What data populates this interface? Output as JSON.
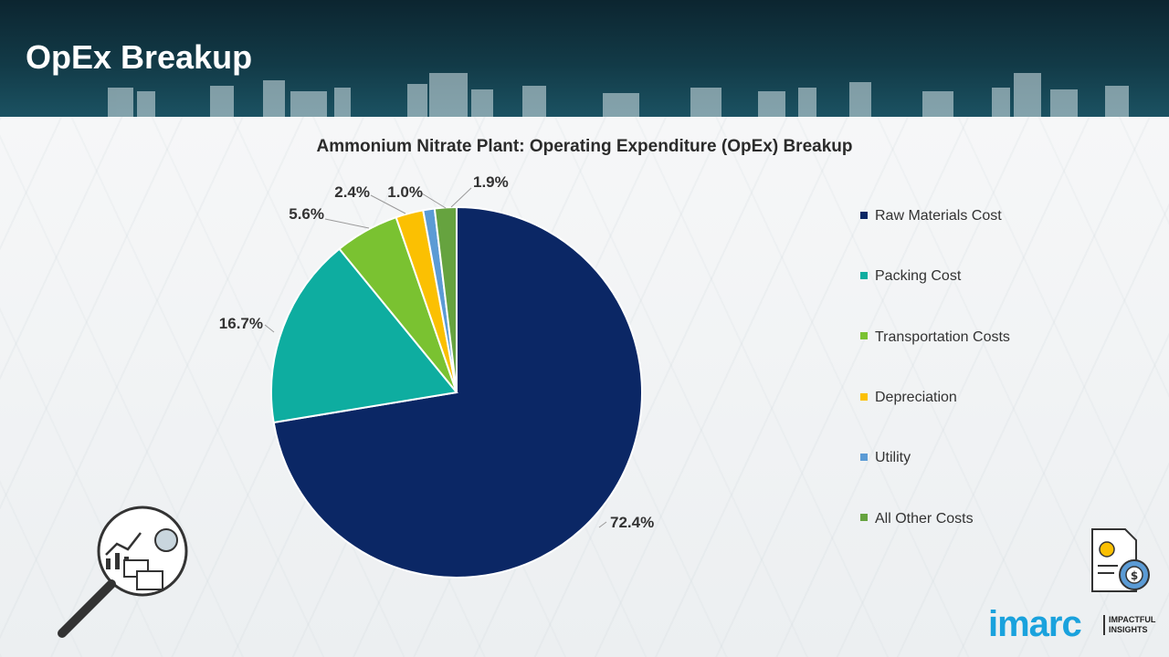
{
  "page": {
    "title": "OpEx Breakup"
  },
  "colors": {
    "banner": "#0f2f3a",
    "raw_materials": "#0b2765",
    "packing": "#0eada0",
    "transportation": "#7ac231",
    "depreciation": "#fbc002",
    "utility": "#5b9bd5",
    "other": "#66a33f",
    "logo": "#1aa2dd"
  },
  "icons": [
    "analytics-magnifier-icon",
    "invoice-gear-icon"
  ],
  "chart_data": {
    "type": "pie",
    "title": "Ammonium Nitrate Plant: Operating Expenditure (OpEx) Breakup",
    "legend_position": "right",
    "slices": [
      {
        "name": "Raw Materials Cost",
        "value": 72.4,
        "label": "72.4%",
        "color": "#0b2765"
      },
      {
        "name": "Packing Cost",
        "value": 16.7,
        "label": "16.7%",
        "color": "#0eada0"
      },
      {
        "name": "Transportation Costs",
        "value": 5.6,
        "label": "5.6%",
        "color": "#7ac231"
      },
      {
        "name": "Depreciation",
        "value": 2.4,
        "label": "2.4%",
        "color": "#fbc002"
      },
      {
        "name": "Utility",
        "value": 1.0,
        "label": "1.0%",
        "color": "#5b9bd5"
      },
      {
        "name": "All Other Costs",
        "value": 1.9,
        "label": "1.9%",
        "color": "#66a33f"
      }
    ]
  },
  "logo": {
    "word": "imarc",
    "tagline_1": "IMPACTFUL",
    "tagline_2": "INSIGHTS"
  }
}
